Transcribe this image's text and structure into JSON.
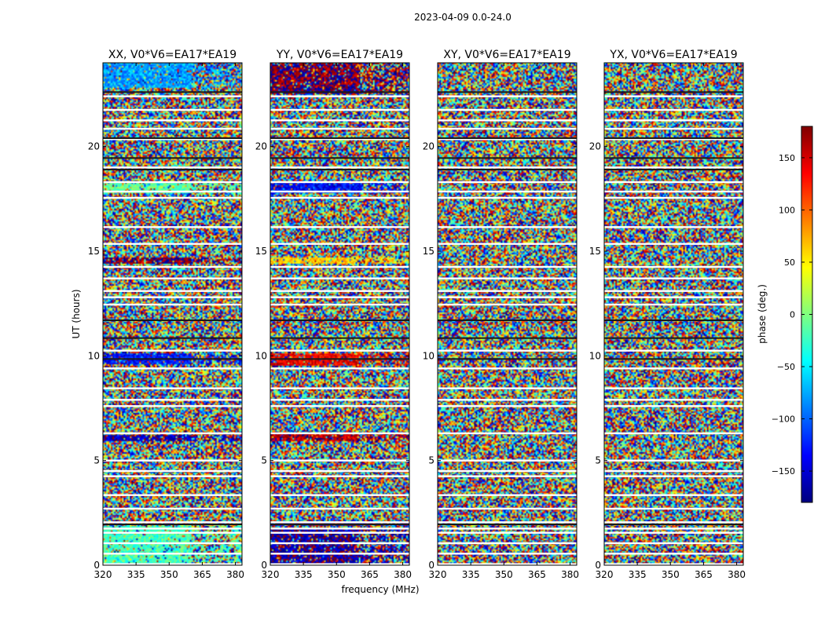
{
  "suptitle": "2023-04-09 0.0-24.0",
  "chart_data": {
    "type": "heatmap",
    "title": "2023-04-09 0.0-24.0",
    "xlabel": "frequency (MHz)",
    "ylabel": "UT (hours)",
    "xlim": [
      320,
      383
    ],
    "ylim": [
      0,
      24
    ],
    "xticks": [
      320,
      335,
      350,
      365,
      380
    ],
    "yticks": [
      0,
      5,
      10,
      15,
      20
    ],
    "colorbar": {
      "label": "phase (deg.)",
      "range": [
        -180,
        180
      ],
      "ticks": [
        -150,
        -100,
        -50,
        0,
        50,
        100,
        150
      ],
      "tick_labels": [
        "−150",
        "−100",
        "−50",
        "0",
        "50",
        "100",
        "150"
      ],
      "colormap": "jet",
      "colors": [
        "#00007f",
        "#0000ff",
        "#007fff",
        "#00ffff",
        "#7fff7f",
        "#ffff00",
        "#ff7f00",
        "#ff0000",
        "#7f0000"
      ]
    },
    "band_break_mhz": 360,
    "flagged_rows_ut": [
      0.05,
      0.55,
      1.05,
      1.55,
      1.75,
      2.05,
      2.7,
      3.35,
      4.25,
      4.5,
      5.0,
      6.3,
      7.6,
      7.9,
      8.45,
      9.4,
      10.25,
      12.45,
      12.8,
      13.1,
      13.7,
      14.25,
      15.35,
      16.15,
      17.55,
      17.85,
      18.3,
      19.0,
      20.35,
      20.85,
      21.25,
      21.75,
      22.4
    ],
    "dark_rows_ut": [
      1.95,
      9.85,
      10.85,
      11.7,
      18.9,
      19.45,
      20.4,
      22.6
    ],
    "panels": [
      {
        "title": "XX, V0*V6=EA17*EA19",
        "coherent_bands": [
          {
            "ut": [
              0.1,
              1.9
            ],
            "phase": -20
          },
          {
            "ut": [
              5.9,
              6.2
            ],
            "phase": -160
          },
          {
            "ut": [
              9.6,
              10.1
            ],
            "phase": -130
          },
          {
            "ut": [
              14.4,
              14.7
            ],
            "phase": 175
          },
          {
            "ut": [
              17.8,
              18.3
            ],
            "phase": -10
          },
          {
            "ut": [
              22.8,
              24.0
            ],
            "phase": -80
          }
        ]
      },
      {
        "title": "YY, V0*V6=EA17*EA19",
        "coherent_bands": [
          {
            "ut": [
              0.1,
              1.7
            ],
            "phase": -165
          },
          {
            "ut": [
              1.85,
              2.0
            ],
            "phase": -170
          },
          {
            "ut": [
              5.9,
              6.3
            ],
            "phase": 160
          },
          {
            "ut": [
              9.5,
              10.1
            ],
            "phase": 140
          },
          {
            "ut": [
              14.4,
              14.7
            ],
            "phase": 60
          },
          {
            "ut": [
              17.8,
              18.3
            ],
            "phase": -135
          },
          {
            "ut": [
              22.5,
              22.8
            ],
            "phase": -175
          },
          {
            "ut": [
              22.8,
              24.0
            ],
            "phase": 175
          }
        ]
      },
      {
        "title": "XY, V0*V6=EA17*EA19",
        "coherent_bands": []
      },
      {
        "title": "YX, V0*V6=EA17*EA19",
        "coherent_bands": []
      }
    ]
  }
}
